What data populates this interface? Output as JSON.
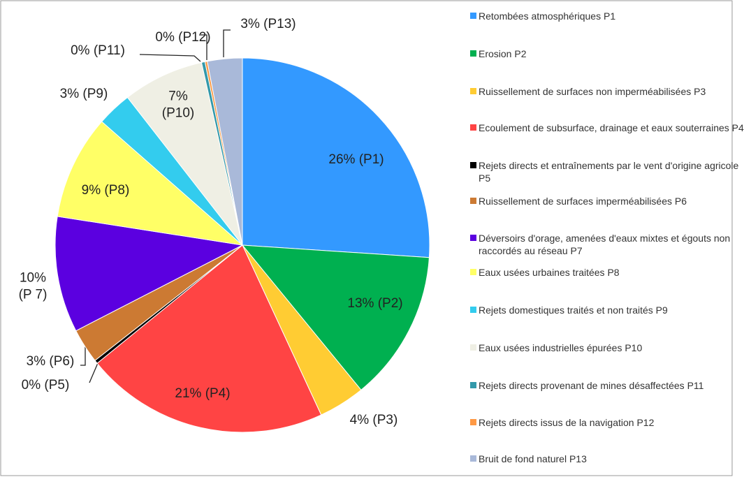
{
  "chart_data": {
    "type": "pie",
    "categories": [
      "Retombées atmosphériques P1",
      "Erosion P2",
      "Ruissellement de surfaces non imperméabilisées P3",
      "Ecoulement de subsurface, drainage et eaux souterraines P4",
      "Rejets directs et entraînements par le vent d'origine agricole P5",
      "Ruissellement de surfaces imperméabilisées P6",
      "Déversoirs d'orage, amenées d'eaux mixtes et égouts non raccordés au réseau P7",
      "Eaux usées urbaines traitées P8",
      "Rejets domestiques traités et non traités P9",
      "Eaux usées industrielles épurées P10",
      "Rejets directs provenant de mines désaffectées P11",
      "Rejets directs issus de la navigation P12",
      "Bruit de fond naturel P13"
    ],
    "values": [
      26,
      13,
      4,
      21,
      0.3,
      3,
      10,
      9,
      3,
      7,
      0.3,
      0.2,
      3
    ],
    "value_labels": [
      "26% (P1)",
      "13% (P2)",
      "4% (P3)",
      "21% (P4)",
      "0% (P5)",
      "3% (P6)",
      "10% (P 7)",
      "9% (P8)",
      "3% (P9)",
      "7% (P10)",
      "0% (P11)",
      "0% (P12)",
      "3% (P13)"
    ],
    "colors": [
      "#3399ff",
      "#00b050",
      "#ffcc33",
      "#ff4444",
      "#000000",
      "#cc7a33",
      "#5b00e0",
      "#ffff66",
      "#33ccee",
      "#efefe4",
      "#3399aa",
      "#ff9944",
      "#a9b9d9"
    ],
    "legend": "right"
  }
}
